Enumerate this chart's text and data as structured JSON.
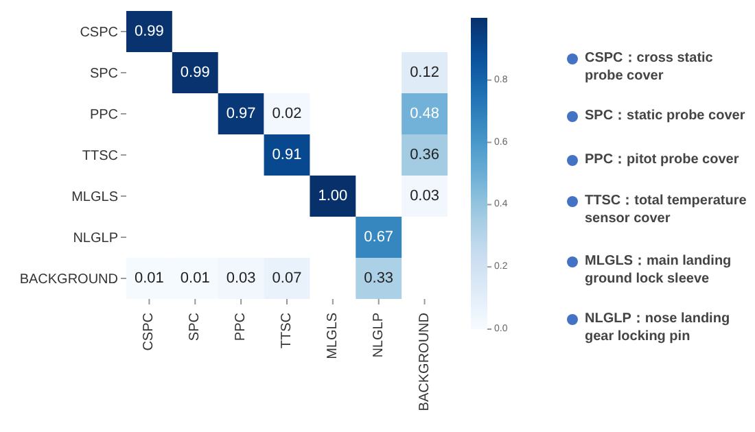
{
  "chart_data": {
    "type": "heatmap",
    "categories": [
      "CSPC",
      "SPC",
      "PPC",
      "TTSC",
      "MLGLS",
      "NLGLP",
      "BACKGROUND"
    ],
    "y_categories": [
      "CSPC",
      "SPC",
      "PPC",
      "TTSC",
      "MLGLS",
      "NLGLP",
      "BACKGROUND"
    ],
    "cells": [
      [
        0.99,
        null,
        null,
        null,
        null,
        null,
        null
      ],
      [
        null,
        0.99,
        null,
        null,
        null,
        null,
        0.12
      ],
      [
        null,
        null,
        0.97,
        0.02,
        null,
        null,
        0.48
      ],
      [
        null,
        null,
        null,
        0.91,
        null,
        null,
        0.36
      ],
      [
        null,
        null,
        null,
        null,
        1.0,
        null,
        0.03
      ],
      [
        null,
        null,
        null,
        null,
        null,
        0.67,
        null
      ],
      [
        0.01,
        0.01,
        0.03,
        0.07,
        null,
        0.33,
        null
      ]
    ],
    "cell_labels": [
      [
        "0.99",
        null,
        null,
        null,
        null,
        null,
        null
      ],
      [
        null,
        "0.99",
        null,
        null,
        null,
        null,
        "0.12"
      ],
      [
        null,
        null,
        "0.97",
        "0.02",
        null,
        null,
        "0.48"
      ],
      [
        null,
        null,
        null,
        "0.91",
        null,
        null,
        "0.36"
      ],
      [
        null,
        null,
        null,
        null,
        "1.00",
        null,
        "0.03"
      ],
      [
        null,
        null,
        null,
        null,
        null,
        "0.67",
        null
      ],
      [
        "0.01",
        "0.01",
        "0.03",
        "0.07",
        null,
        "0.33",
        null
      ]
    ],
    "clim": [
      0,
      1
    ],
    "cticks": [
      {
        "value": 0,
        "label": "0.0"
      },
      {
        "value": 0.2,
        "label": "0.2"
      },
      {
        "value": 0.4,
        "label": "0.4"
      },
      {
        "value": 0.6,
        "label": "0.6"
      },
      {
        "value": 0.8,
        "label": "0.8"
      }
    ],
    "annotations": [
      "CSPC：cross static probe cover",
      "SPC：static probe cover",
      "PPC：pitot probe cover",
      "TTSC：total temperature sensor cover",
      "MLGLS：main landing ground lock sleeve",
      "NLGLP：nose landing gear locking pin"
    ]
  }
}
